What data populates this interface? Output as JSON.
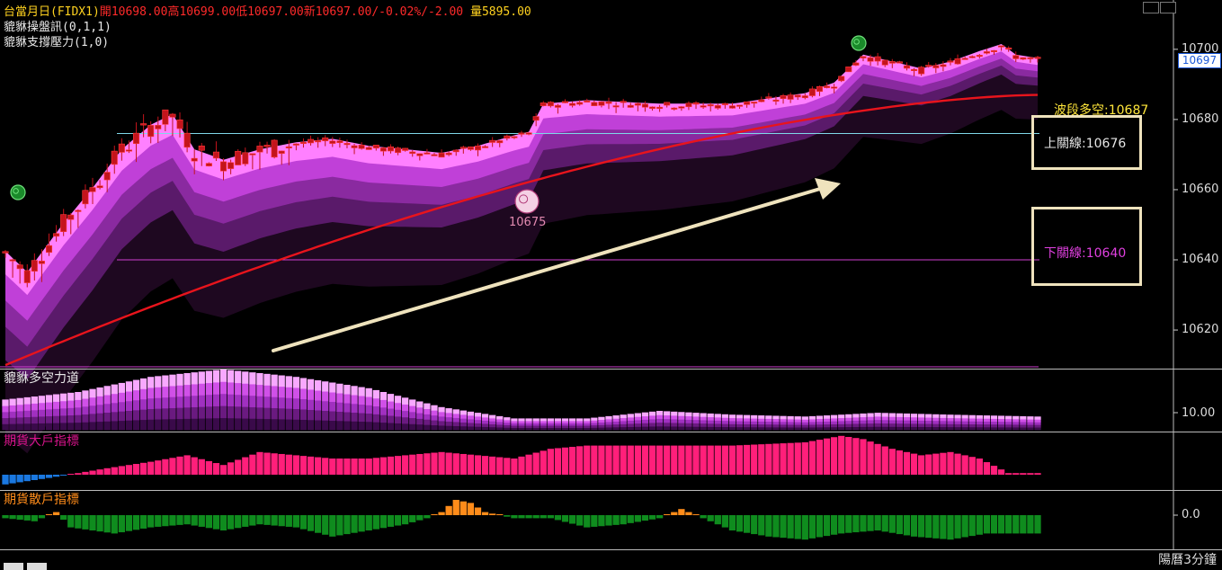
{
  "header": {
    "symbol_line": {
      "name": "台當月日(FIDX1)",
      "open_label": "開",
      "open": "10698.00",
      "high_label": "高",
      "high": "10699.00",
      "low_label": "低",
      "low": "10697.00",
      "last_label": "新",
      "last": "10697.00",
      "change": "/-0.02%/-2.00",
      "volume_label": "量",
      "volume": "5895.00"
    },
    "indicator_1": "貔貅操盤訊(0,1,1)",
    "indicator_2": "貔貅支撐壓力(1,0)"
  },
  "annotations": {
    "wave_label": "波段多空",
    "wave_value": ":10687",
    "upper_label": "上關線",
    "upper_value": ":10676",
    "lower_label": "下關線",
    "lower_value": ":10640",
    "coin_value": "10675"
  },
  "panes": {
    "power_title": "貔貅多空力道",
    "big_title": "期貨大戶指標",
    "retail_title": "期貨散戶指標"
  },
  "footer": {
    "label": "陽曆3分鐘"
  },
  "colors": {
    "candle": "#c4141c",
    "wave_line": "#e8141c",
    "band_light": "#ff80ff",
    "band_mid": "#c040d8",
    "band_dark": "#5a1a6a",
    "upper_line": "#7fd8e8",
    "lower_line": "#d040d0",
    "big_bar": "#ff1f7a",
    "big_bar_neg": "#1a78e0",
    "retail_pos": "#ff8c1a",
    "retail_neg": "#0f8c1e",
    "box_border": "#efe3bd"
  },
  "chart_data": {
    "type": "candlestick",
    "main": {
      "y_ticks": [
        10700,
        10680,
        10660,
        10640,
        10620
      ],
      "ylim": [
        10609,
        10712
      ],
      "last_price": 10697,
      "last_price_label": "10697",
      "upper_line": 10676,
      "lower_line": 10640,
      "wave_start": 10610,
      "wave_end": 10687,
      "anchors": [
        {
          "i": 0,
          "p": 10642
        },
        {
          "i": 3,
          "p": 10636
        },
        {
          "i": 8,
          "p": 10650
        },
        {
          "i": 12,
          "p": 10660
        },
        {
          "i": 16,
          "p": 10671
        },
        {
          "i": 20,
          "p": 10678
        },
        {
          "i": 23,
          "p": 10681
        },
        {
          "i": 26,
          "p": 10671
        },
        {
          "i": 30,
          "p": 10668
        },
        {
          "i": 35,
          "p": 10671
        },
        {
          "i": 40,
          "p": 10673
        },
        {
          "i": 45,
          "p": 10674
        },
        {
          "i": 50,
          "p": 10672
        },
        {
          "i": 55,
          "p": 10671
        },
        {
          "i": 60,
          "p": 10670
        },
        {
          "i": 65,
          "p": 10672
        },
        {
          "i": 70,
          "p": 10675
        },
        {
          "i": 72,
          "p": 10676
        },
        {
          "i": 74,
          "p": 10684
        },
        {
          "i": 80,
          "p": 10685
        },
        {
          "i": 90,
          "p": 10684
        },
        {
          "i": 100,
          "p": 10684
        },
        {
          "i": 110,
          "p": 10687
        },
        {
          "i": 114,
          "p": 10690
        },
        {
          "i": 118,
          "p": 10698
        },
        {
          "i": 122,
          "p": 10696
        },
        {
          "i": 126,
          "p": 10694
        },
        {
          "i": 130,
          "p": 10696
        },
        {
          "i": 134,
          "p": 10699
        },
        {
          "i": 137,
          "p": 10701
        },
        {
          "i": 139,
          "p": 10698
        },
        {
          "i": 142,
          "p": 10697
        }
      ]
    },
    "power": {
      "y_ticks_label": "10.00",
      "anchors": [
        {
          "i": 0,
          "v": 6
        },
        {
          "i": 10,
          "v": 8
        },
        {
          "i": 20,
          "v": 12
        },
        {
          "i": 30,
          "v": 14
        },
        {
          "i": 40,
          "v": 12
        },
        {
          "i": 50,
          "v": 9
        },
        {
          "i": 60,
          "v": 4
        },
        {
          "i": 70,
          "v": 1
        },
        {
          "i": 80,
          "v": 1
        },
        {
          "i": 90,
          "v": 3
        },
        {
          "i": 100,
          "v": 2
        },
        {
          "i": 110,
          "v": 1.5
        },
        {
          "i": 120,
          "v": 2.5
        },
        {
          "i": 130,
          "v": 2
        },
        {
          "i": 142,
          "v": 1.5
        }
      ]
    },
    "big_traders": {
      "anchors": [
        {
          "i": 0,
          "v": -3
        },
        {
          "i": 6,
          "v": -1
        },
        {
          "i": 10,
          "v": 0.5
        },
        {
          "i": 14,
          "v": 2
        },
        {
          "i": 20,
          "v": 4
        },
        {
          "i": 25,
          "v": 6
        },
        {
          "i": 30,
          "v": 3
        },
        {
          "i": 35,
          "v": 7
        },
        {
          "i": 40,
          "v": 6
        },
        {
          "i": 45,
          "v": 5
        },
        {
          "i": 50,
          "v": 5
        },
        {
          "i": 55,
          "v": 6
        },
        {
          "i": 60,
          "v": 7
        },
        {
          "i": 70,
          "v": 5
        },
        {
          "i": 75,
          "v": 8
        },
        {
          "i": 80,
          "v": 9
        },
        {
          "i": 90,
          "v": 9
        },
        {
          "i": 100,
          "v": 9
        },
        {
          "i": 110,
          "v": 10
        },
        {
          "i": 115,
          "v": 12
        },
        {
          "i": 118,
          "v": 11
        },
        {
          "i": 122,
          "v": 8
        },
        {
          "i": 126,
          "v": 6
        },
        {
          "i": 130,
          "v": 7
        },
        {
          "i": 134,
          "v": 5
        },
        {
          "i": 138,
          "v": 0.5
        },
        {
          "i": 142,
          "v": 0.5
        }
      ]
    },
    "retail_traders": {
      "y_ticks_label": "0.0",
      "anchors": [
        {
          "i": 0,
          "v": -1
        },
        {
          "i": 4,
          "v": -2
        },
        {
          "i": 7,
          "v": 1
        },
        {
          "i": 9,
          "v": -4
        },
        {
          "i": 15,
          "v": -6
        },
        {
          "i": 20,
          "v": -4
        },
        {
          "i": 25,
          "v": -3
        },
        {
          "i": 30,
          "v": -5
        },
        {
          "i": 35,
          "v": -3
        },
        {
          "i": 40,
          "v": -4
        },
        {
          "i": 45,
          "v": -7
        },
        {
          "i": 50,
          "v": -5
        },
        {
          "i": 55,
          "v": -3
        },
        {
          "i": 58,
          "v": -1
        },
        {
          "i": 60,
          "v": 1
        },
        {
          "i": 62,
          "v": 5
        },
        {
          "i": 64,
          "v": 4
        },
        {
          "i": 66,
          "v": 1
        },
        {
          "i": 70,
          "v": -1
        },
        {
          "i": 75,
          "v": -1
        },
        {
          "i": 80,
          "v": -4
        },
        {
          "i": 85,
          "v": -3
        },
        {
          "i": 90,
          "v": -1
        },
        {
          "i": 93,
          "v": 2
        },
        {
          "i": 96,
          "v": -1
        },
        {
          "i": 100,
          "v": -5
        },
        {
          "i": 105,
          "v": -7
        },
        {
          "i": 110,
          "v": -8
        },
        {
          "i": 115,
          "v": -6
        },
        {
          "i": 120,
          "v": -5
        },
        {
          "i": 125,
          "v": -7
        },
        {
          "i": 130,
          "v": -8
        },
        {
          "i": 135,
          "v": -6
        },
        {
          "i": 142,
          "v": -6
        }
      ]
    },
    "bar_count": 143
  }
}
